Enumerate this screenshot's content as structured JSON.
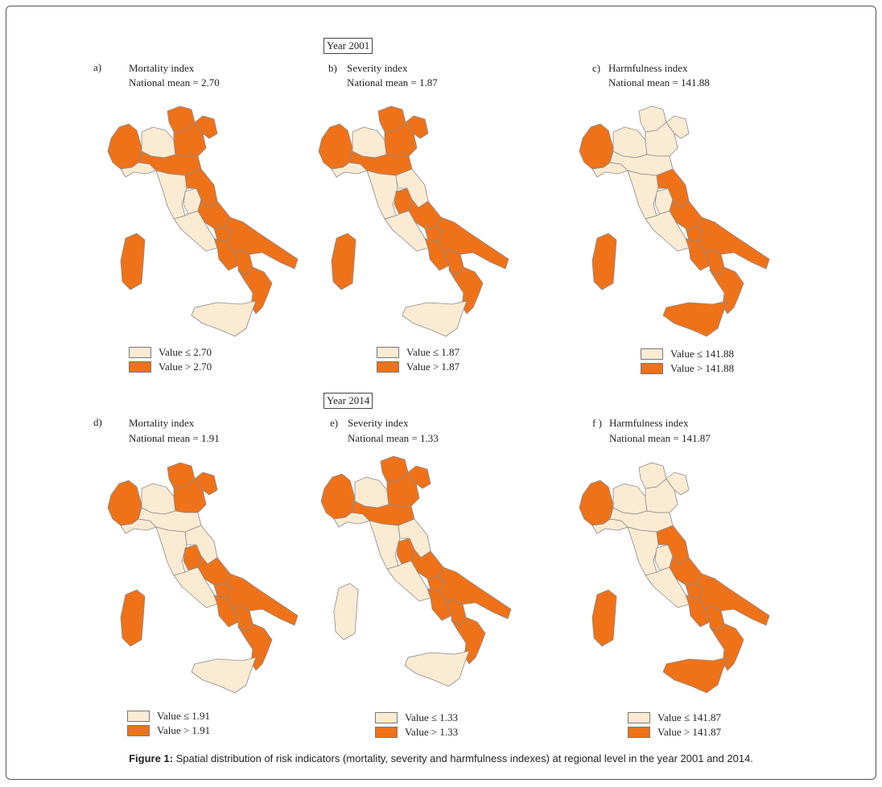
{
  "colors": {
    "low": "#fcebd3",
    "high": "#ef7219",
    "border": "#8a8a8a"
  },
  "years": [
    {
      "label": "Year 2001",
      "panels": [
        {
          "letter": "a)",
          "title": "Mortality  index",
          "mean": "National mean = 2.70",
          "legend": [
            "Value ≤ 2.70",
            "Value > 2.70"
          ],
          "regions": {
            "piemonte": "high",
            "lombardia": "low",
            "trentino": "high",
            "veneto": "high",
            "friuli": "high",
            "liguria": "low",
            "emilia": "high",
            "toscana": "low",
            "umbria": "low",
            "marche": "high",
            "lazio": "low",
            "abruzzo": "high",
            "molise": "high",
            "campania": "high",
            "puglia": "high",
            "basilicata": "high",
            "calabria": "high",
            "sicilia": "low",
            "sardegna": "high"
          }
        },
        {
          "letter": "b)",
          "title": "Severity index",
          "mean": "National mean = 1.87",
          "legend": [
            "Value ≤ 1.87",
            "Value > 1.87"
          ],
          "regions": {
            "piemonte": "high",
            "lombardia": "low",
            "trentino": "high",
            "veneto": "high",
            "friuli": "high",
            "liguria": "low",
            "emilia": "high",
            "toscana": "low",
            "umbria": "high",
            "marche": "low",
            "lazio": "low",
            "abruzzo": "high",
            "molise": "high",
            "campania": "high",
            "puglia": "high",
            "basilicata": "high",
            "calabria": "high",
            "sicilia": "low",
            "sardegna": "high"
          }
        },
        {
          "letter": "c)",
          "title": "Harmfulness index",
          "mean": "National mean = 141.88",
          "legend": [
            "Value ≤ 141.88",
            "Value > 141.88"
          ],
          "regions": {
            "piemonte": "high",
            "lombardia": "low",
            "trentino": "low",
            "veneto": "low",
            "friuli": "low",
            "liguria": "low",
            "emilia": "low",
            "toscana": "low",
            "umbria": "low",
            "marche": "high",
            "lazio": "low",
            "abruzzo": "high",
            "molise": "high",
            "campania": "high",
            "puglia": "high",
            "basilicata": "high",
            "calabria": "high",
            "sicilia": "high",
            "sardegna": "high"
          }
        }
      ]
    },
    {
      "label": "Year 2014",
      "panels": [
        {
          "letter": "d)",
          "title": "Mortality  index",
          "mean": "National mean = 1.91",
          "legend": [
            "Value ≤ 1.91",
            "Value > 1.91"
          ],
          "regions": {
            "piemonte": "high",
            "lombardia": "low",
            "trentino": "high",
            "veneto": "high",
            "friuli": "high",
            "liguria": "low",
            "emilia": "low",
            "toscana": "low",
            "umbria": "high",
            "marche": "low",
            "lazio": "low",
            "abruzzo": "high",
            "molise": "high",
            "campania": "high",
            "puglia": "high",
            "basilicata": "high",
            "calabria": "high",
            "sicilia": "low",
            "sardegna": "high"
          }
        },
        {
          "letter": "e)",
          "title": "Severity index",
          "mean": "National mean = 1.33",
          "legend": [
            "Value ≤ 1.33",
            "Value > 1.33"
          ],
          "regions": {
            "piemonte": "high",
            "lombardia": "low",
            "trentino": "high",
            "veneto": "high",
            "friuli": "high",
            "liguria": "low",
            "emilia": "high",
            "toscana": "low",
            "umbria": "high",
            "marche": "low",
            "lazio": "low",
            "abruzzo": "high",
            "molise": "high",
            "campania": "high",
            "puglia": "high",
            "basilicata": "high",
            "calabria": "high",
            "sicilia": "low",
            "sardegna": "low"
          }
        },
        {
          "letter": "f )",
          "title": "Harmfulness index",
          "mean": "National mean = 141.87",
          "legend": [
            "Value ≤ 141.87",
            "Value > 141.87"
          ],
          "regions": {
            "piemonte": "high",
            "lombardia": "low",
            "trentino": "low",
            "veneto": "low",
            "friuli": "low",
            "liguria": "low",
            "emilia": "low",
            "toscana": "low",
            "umbria": "low",
            "marche": "high",
            "lazio": "low",
            "abruzzo": "high",
            "molise": "high",
            "campania": "high",
            "puglia": "high",
            "basilicata": "high",
            "calabria": "high",
            "sicilia": "high",
            "sardegna": "high"
          }
        }
      ]
    }
  ],
  "caption": {
    "label": "Figure 1:",
    "text": "Spatial distribution of risk indicators (mortality, severity and harmfulness indexes) at regional level in the year 2001 and 2014."
  }
}
